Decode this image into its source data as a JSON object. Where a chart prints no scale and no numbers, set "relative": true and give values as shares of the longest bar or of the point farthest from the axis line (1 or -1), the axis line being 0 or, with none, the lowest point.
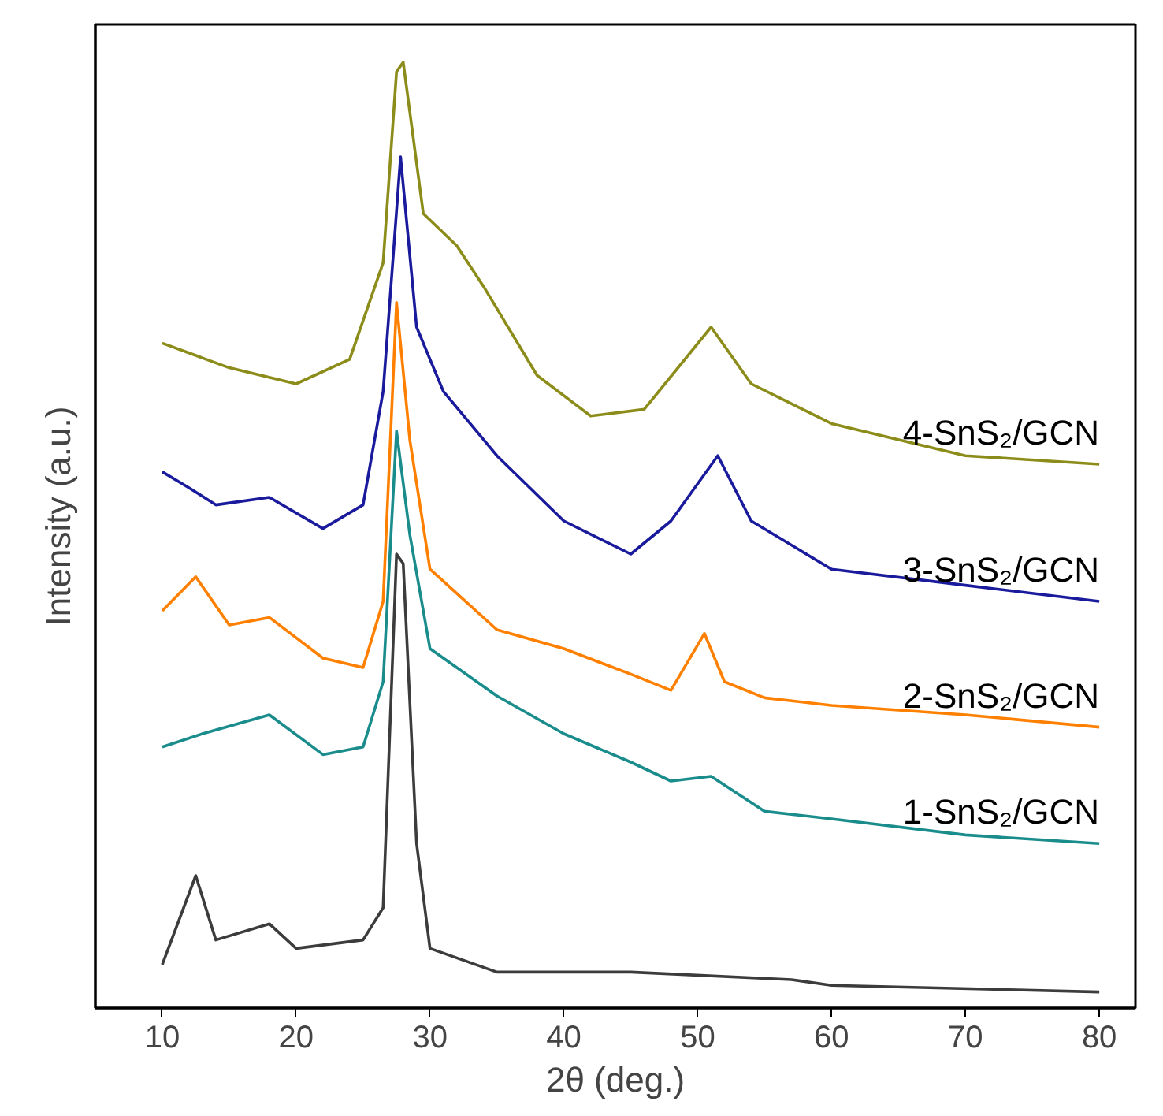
{
  "chart_data": {
    "type": "line",
    "relative": true,
    "xlabel": "2θ (deg.)",
    "ylabel": "Intensity (a.u.)",
    "xlim": [
      5,
      82.7
    ],
    "xticks": [
      10,
      20,
      30,
      40,
      50,
      60,
      70,
      80
    ],
    "tick_labels": "x",
    "grid": false,
    "line_style": "solid",
    "marker": "none",
    "series": [
      {
        "color": "#3c3c3c",
        "x": [
          10,
          12.5,
          14,
          18,
          20,
          25,
          26.5,
          27.5,
          28,
          29,
          30,
          35,
          45,
          57,
          60,
          80
        ],
        "values": [
          0.046,
          0.14,
          0.072,
          0.089,
          0.063,
          0.072,
          0.106,
          0.48,
          0.47,
          0.174,
          0.063,
          0.038,
          0.038,
          0.03,
          0.024,
          0.017
        ]
      },
      {
        "name": "1-SnS₂/GCN",
        "color": "#1a8c8c",
        "x": [
          10,
          13,
          18,
          22,
          25,
          26.5,
          27.5,
          28.5,
          30,
          35,
          40,
          45,
          48,
          51,
          55,
          60,
          70,
          80
        ],
        "values": [
          0.276,
          0.29,
          0.31,
          0.268,
          0.276,
          0.345,
          0.61,
          0.5,
          0.38,
          0.33,
          0.29,
          0.26,
          0.24,
          0.245,
          0.208,
          0.2,
          0.183,
          0.174
        ]
      },
      {
        "name": "2-SnS₂/GCN",
        "color": "#ff8000",
        "x": [
          10,
          12.5,
          15,
          18,
          22,
          25,
          26.5,
          27.5,
          28.5,
          30,
          35,
          40,
          45,
          48,
          50.5,
          52,
          55,
          60,
          70,
          80
        ],
        "values": [
          0.42,
          0.456,
          0.405,
          0.413,
          0.37,
          0.36,
          0.43,
          0.746,
          0.6,
          0.464,
          0.4,
          0.38,
          0.353,
          0.336,
          0.396,
          0.345,
          0.328,
          0.32,
          0.31,
          0.297
        ]
      },
      {
        "name": "3-SnS₂/GCN",
        "color": "#1a1a9c",
        "x": [
          10,
          12,
          14,
          18,
          22,
          25,
          26.5,
          27.8,
          29,
          31,
          35,
          40,
          45,
          48,
          51.5,
          54,
          60,
          70,
          80
        ],
        "values": [
          0.567,
          0.55,
          0.532,
          0.54,
          0.507,
          0.532,
          0.652,
          0.9,
          0.72,
          0.652,
          0.584,
          0.515,
          0.48,
          0.515,
          0.584,
          0.515,
          0.464,
          0.447,
          0.43
        ]
      },
      {
        "name": "4-SnS₂/GCN",
        "color": "#8c8c1a",
        "x": [
          10,
          15,
          20,
          24,
          26.5,
          27.5,
          28,
          29.5,
          32,
          34,
          38,
          42,
          46,
          51,
          54,
          60,
          70,
          80
        ],
        "values": [
          0.703,
          0.677,
          0.66,
          0.686,
          0.788,
          0.99,
          1.0,
          0.84,
          0.806,
          0.763,
          0.669,
          0.626,
          0.633,
          0.72,
          0.66,
          0.618,
          0.584,
          0.575
        ]
      }
    ]
  }
}
